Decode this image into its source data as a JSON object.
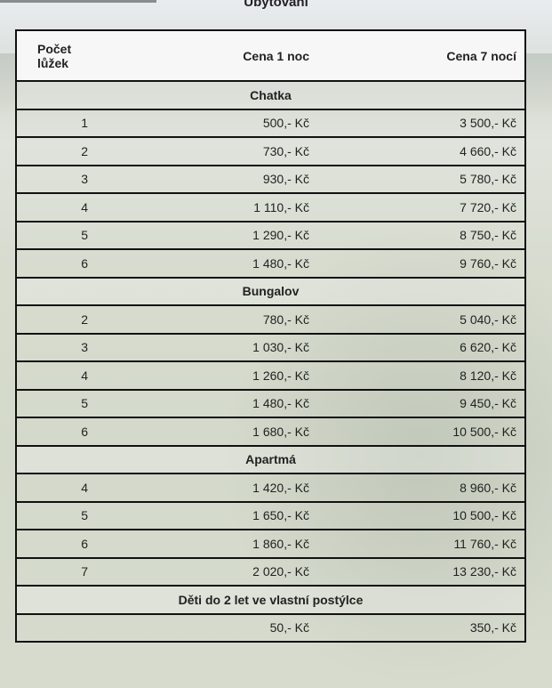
{
  "title": "Ubytování",
  "headers": [
    "Počet lůžek",
    "Cena 1 noc",
    "Cena 7 nocí"
  ],
  "sections": [
    {
      "name": "Chatka",
      "rows": [
        [
          "1",
          "500,- Kč",
          "3 500,- Kč"
        ],
        [
          "2",
          "730,- Kč",
          "4 660,- Kč"
        ],
        [
          "3",
          "930,- Kč",
          "5 780,- Kč"
        ],
        [
          "4",
          "1 110,- Kč",
          "7 720,- Kč"
        ],
        [
          "5",
          "1 290,- Kč",
          "8 750,- Kč"
        ],
        [
          "6",
          "1 480,- Kč",
          "9 760,- Kč"
        ]
      ]
    },
    {
      "name": "Bungalov",
      "rows": [
        [
          "2",
          "780,- Kč",
          "5 040,- Kč"
        ],
        [
          "3",
          "1 030,- Kč",
          "6 620,- Kč"
        ],
        [
          "4",
          "1 260,- Kč",
          "8 120,- Kč"
        ],
        [
          "5",
          "1 480,- Kč",
          "9 450,- Kč"
        ],
        [
          "6",
          "1 680,- Kč",
          "10 500,- Kč"
        ]
      ]
    },
    {
      "name": "Apartmá",
      "rows": [
        [
          "4",
          "1 420,- Kč",
          "8 960,- Kč"
        ],
        [
          "5",
          "1 650,- Kč",
          "10 500,- Kč"
        ],
        [
          "6",
          "1 860,- Kč",
          "11 760,- Kč"
        ],
        [
          "7",
          "2 020,- Kč",
          "13 230,- Kč"
        ]
      ]
    },
    {
      "name": "Děti do 2 let ve vlastní postýlce",
      "rows": [
        [
          "",
          "50,- Kč",
          "350,- Kč"
        ]
      ]
    }
  ]
}
